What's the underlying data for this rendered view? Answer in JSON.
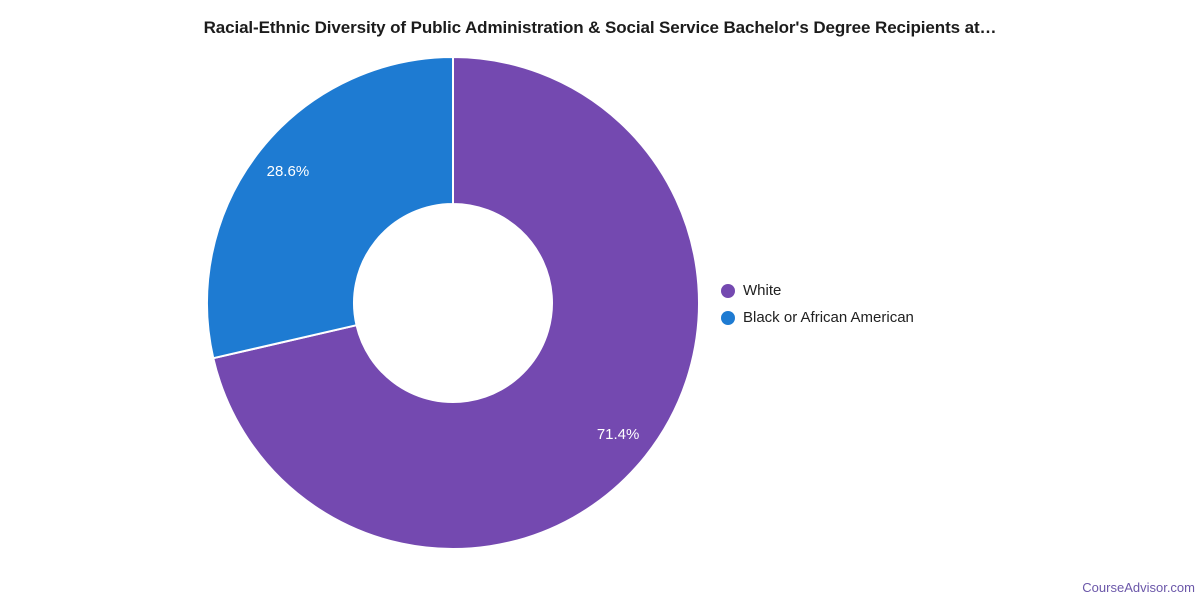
{
  "title": "Racial-Ethnic Diversity of Public Administration & Social Service Bachelor's Degree Recipients at…",
  "watermark": {
    "label": "CourseAdvisor.com",
    "color": "#6b57a9"
  },
  "legend": {
    "position": "right",
    "items": [
      {
        "label": "White",
        "color": "#7449b0"
      },
      {
        "label": "Black or African American",
        "color": "#1e7bd2"
      }
    ]
  },
  "chart_data": {
    "type": "pie",
    "donut": true,
    "title": "Racial-Ethnic Diversity of Public Administration & Social Service Bachelor's Degree Recipients at…",
    "categories": [
      "White",
      "Black or African American"
    ],
    "values": [
      71.4,
      28.6
    ],
    "labels": [
      "71.4%",
      "28.6%"
    ],
    "colors": [
      "#7449b0",
      "#1e7bd2"
    ],
    "label_color": "#ffffff",
    "start_angle_deg": 0,
    "direction": "clockwise",
    "inner_radius_ratio": 0.4,
    "legend_position": "right",
    "grid": false
  }
}
